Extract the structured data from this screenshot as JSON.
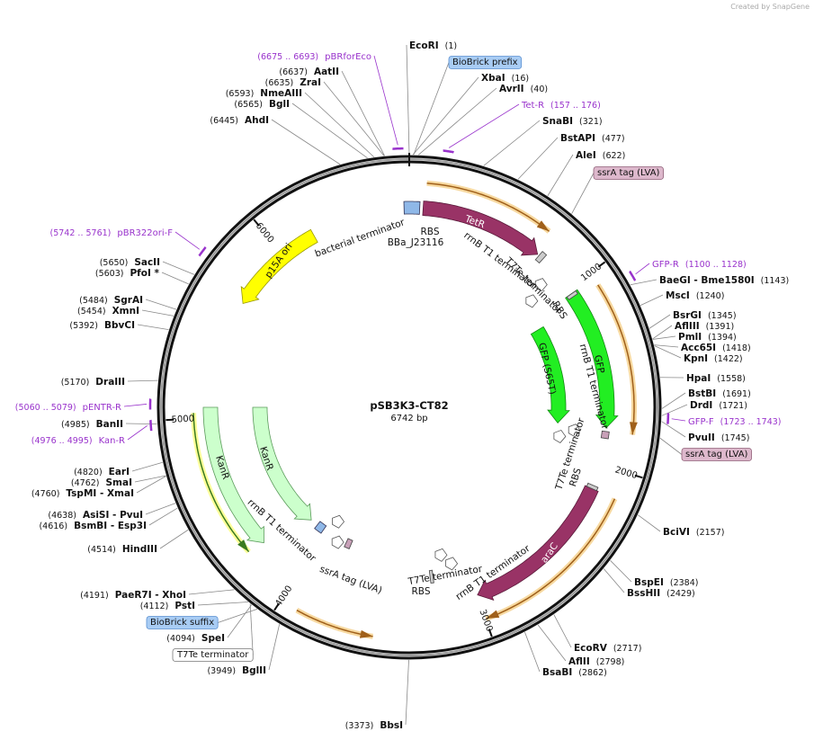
{
  "header": {
    "credit": "Created by SnapGene"
  },
  "map": {
    "name": "pSB3K3-CT82",
    "length": "6742 bp",
    "ticks": [
      1000,
      2000,
      3000,
      4000,
      5000,
      6000
    ]
  },
  "sites": [
    {
      "name": "EcoRI",
      "pos": "(1)"
    },
    {
      "name": "XbaI",
      "pos": "(16)"
    },
    {
      "name": "AvrII",
      "pos": "(40)"
    },
    {
      "name": "SnaBI",
      "pos": "(321)"
    },
    {
      "name": "BstAPI",
      "pos": "(477)"
    },
    {
      "name": "AleI",
      "pos": "(622)"
    },
    {
      "name": "BaeGI  - Bme1580I",
      "pos": "(1143)"
    },
    {
      "name": "MscI",
      "pos": "(1240)"
    },
    {
      "name": "BsrGI",
      "pos": "(1345)"
    },
    {
      "name": "AflIII",
      "pos": "(1391)"
    },
    {
      "name": "PmlI",
      "pos": "(1394)"
    },
    {
      "name": "Acc65I",
      "pos": "(1418)"
    },
    {
      "name": "KpnI",
      "pos": "(1422)"
    },
    {
      "name": "HpaI",
      "pos": "(1558)"
    },
    {
      "name": "BstBI",
      "pos": "(1691)"
    },
    {
      "name": "DrdI",
      "pos": "(1721)"
    },
    {
      "name": "PvuII",
      "pos": "(1745)"
    },
    {
      "name": "BciVI",
      "pos": "(2157)"
    },
    {
      "name": "BspEI",
      "pos": "(2384)"
    },
    {
      "name": "BssHII",
      "pos": "(2429)"
    },
    {
      "name": "EcoRV",
      "pos": "(2717)"
    },
    {
      "name": "AflII",
      "pos": "(2798)"
    },
    {
      "name": "BsaBI",
      "pos": "(2862)"
    },
    {
      "name": "BbsI",
      "pos": "(3373)"
    },
    {
      "name": "BglII",
      "pos": "(3949)"
    },
    {
      "name": "SpeI",
      "pos": "(4094)"
    },
    {
      "name": "PstI",
      "pos": "(4112)"
    },
    {
      "name": "PaeR7I  - XhoI",
      "pos": "(4191)"
    },
    {
      "name": "HindIII",
      "pos": "(4514)"
    },
    {
      "name": "BsmBI  - Esp3I",
      "pos": "(4616)"
    },
    {
      "name": "AsiSI  - PvuI",
      "pos": "(4638)"
    },
    {
      "name": "TspMI  - XmaI",
      "pos": "(4760)"
    },
    {
      "name": "SmaI",
      "pos": "(4762)"
    },
    {
      "name": "EarI",
      "pos": "(4820)"
    },
    {
      "name": "BanII",
      "pos": "(4985)"
    },
    {
      "name": "DraIII",
      "pos": "(5170)"
    },
    {
      "name": "BbvCI",
      "pos": "(5392)"
    },
    {
      "name": "XmnI",
      "pos": "(5454)"
    },
    {
      "name": "SgrAI",
      "pos": "(5484)"
    },
    {
      "name": "PfoI *",
      "pos": "(5603)"
    },
    {
      "name": "SacII",
      "pos": "(5650)"
    },
    {
      "name": "AhdI",
      "pos": "(6445)"
    },
    {
      "name": "BglI",
      "pos": "(6565)"
    },
    {
      "name": "NmeAIII",
      "pos": "(6593)"
    },
    {
      "name": "ZraI",
      "pos": "(6635)"
    },
    {
      "name": "AatII",
      "pos": "(6637)"
    }
  ],
  "primers": [
    {
      "name": "pBRforEco",
      "range": "(6675 .. 6693)"
    },
    {
      "name": "Tet-R",
      "range": "(157 .. 176)"
    },
    {
      "name": "GFP-R",
      "range": "(1100 .. 1128)"
    },
    {
      "name": "GFP-F",
      "range": "(1723 .. 1743)"
    },
    {
      "name": "pENTR-R",
      "range": "(5060 .. 5079)"
    },
    {
      "name": "Kan-R",
      "range": "(4976 .. 4995)"
    },
    {
      "name": "pBR322ori-F",
      "range": "(5742 .. 5761)"
    }
  ],
  "boxes": [
    "BioBrick prefix",
    "ssrA tag (LVA)",
    "ssrA tag (LVA)",
    "BioBrick suffix",
    "T7Te terminator"
  ],
  "features": [
    "TetR",
    "bacterial terminator",
    "RBS",
    "BBa_J23116",
    "rrnB T1 terminator",
    "T7Te terminator",
    "RBS",
    "GFP",
    "GFP (S65T)",
    "rrnB T1 terminator",
    "T7Te terminator",
    "RBS",
    "araC",
    "rrnB T1 terminator",
    "T7Te terminator",
    "RBS",
    "KanR",
    "KanR",
    "rrnB T1 terminator",
    "ssrA tag (LVA)",
    "p15A ori"
  ]
}
